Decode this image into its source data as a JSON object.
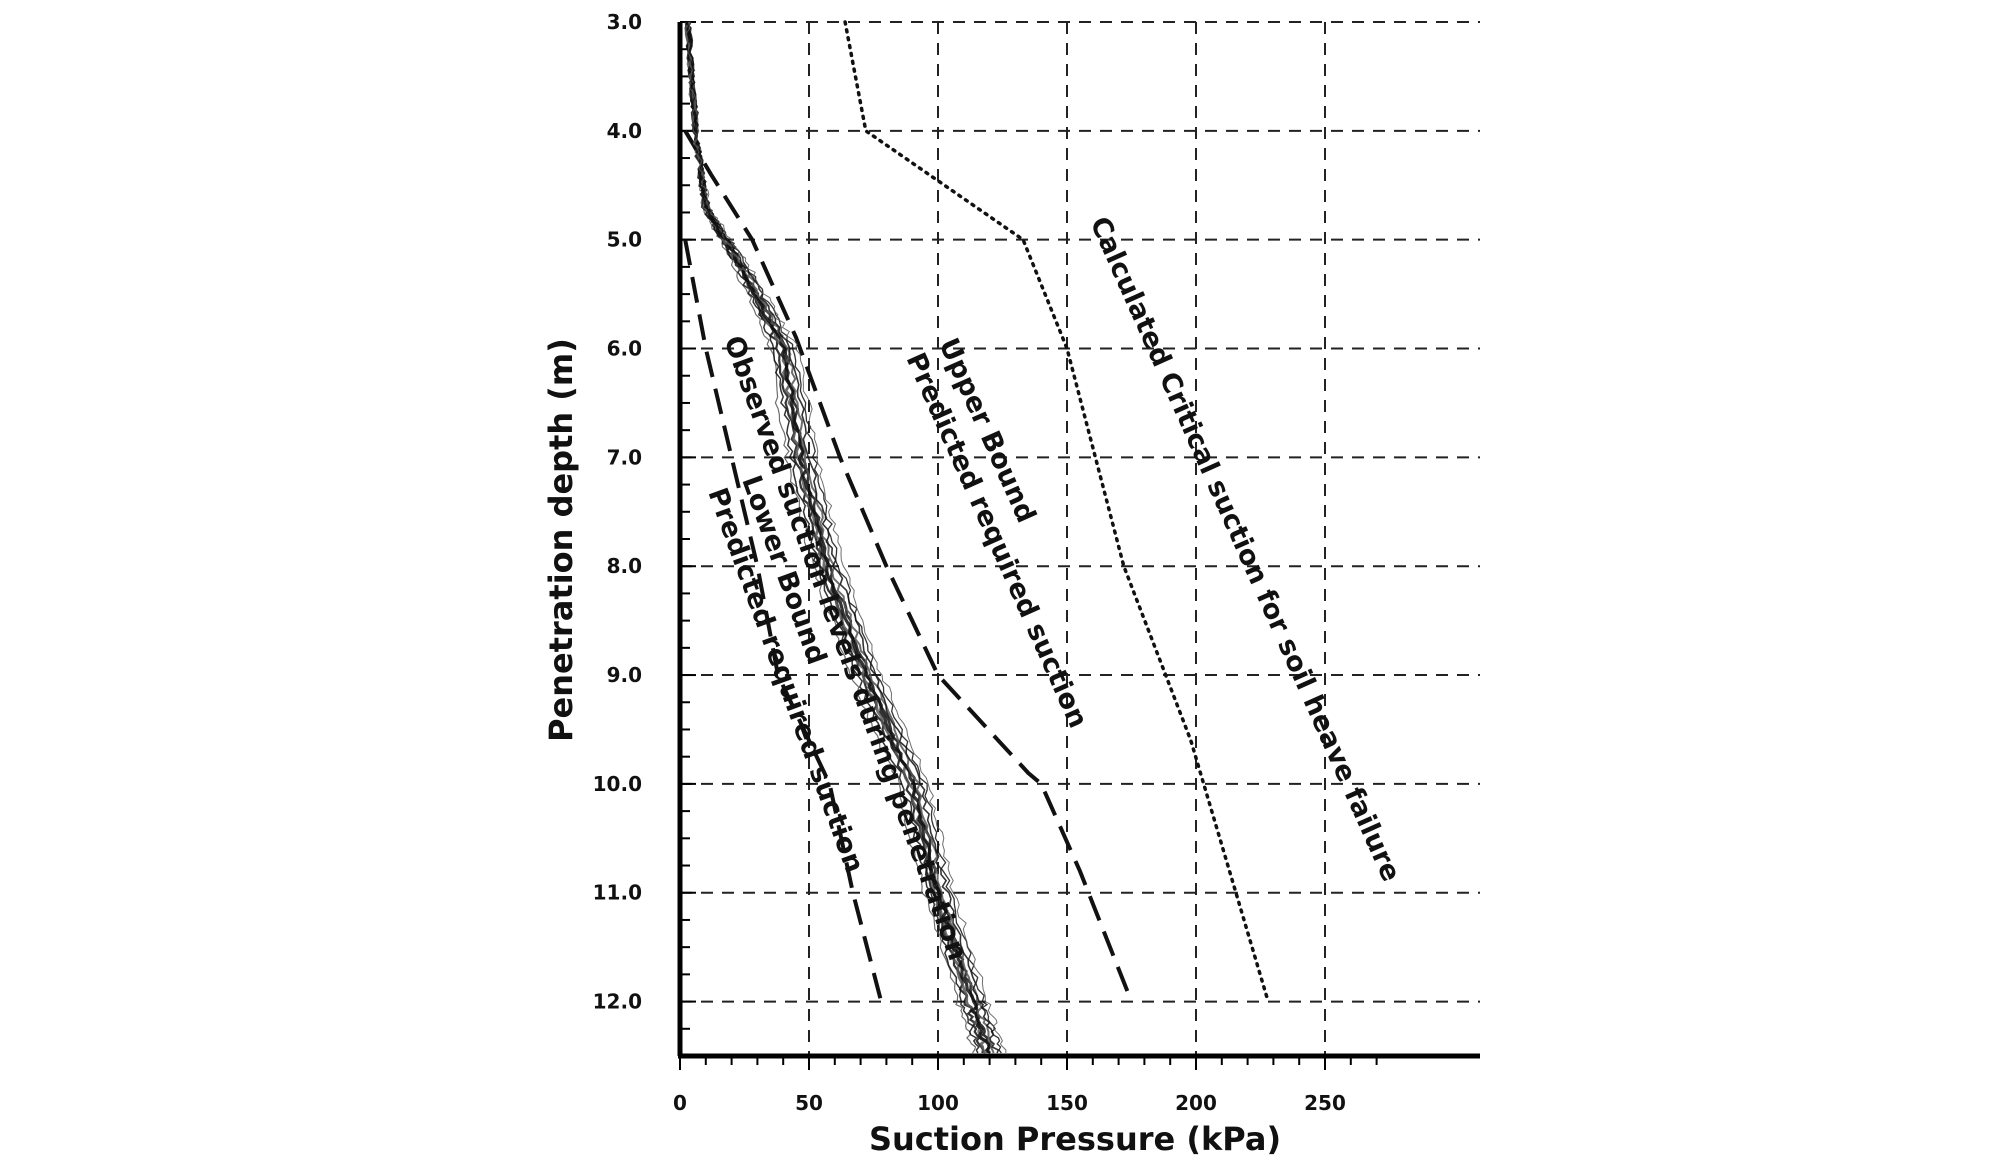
{
  "chart_data": {
    "type": "line",
    "title": "",
    "xlabel": "Suction Pressure (kPa)",
    "ylabel": "Penetration depth (m)",
    "xlim": [
      0,
      270
    ],
    "ylim": [
      3.0,
      12.5
    ],
    "y_inverted": true,
    "grid": true,
    "x_ticks": [
      0,
      50,
      100,
      150,
      200,
      250
    ],
    "x_tick_labels": [
      "0",
      "50",
      "100",
      "150",
      "200",
      "250"
    ],
    "y_ticks": [
      3,
      4,
      5,
      6,
      7,
      8,
      9,
      10,
      11,
      12
    ],
    "y_tick_labels": [
      "3.0",
      "4.0",
      "5.0",
      "6.0",
      "7.0",
      "8.0",
      "9.0",
      "10.0",
      "11.0",
      "12.0"
    ],
    "series": [
      {
        "style": "dotted",
        "points": [
          [
            64,
            3.0
          ],
          [
            72,
            4.0
          ],
          [
            133,
            5.0
          ],
          [
            150,
            6.0
          ],
          [
            172,
            8.0
          ],
          [
            198,
            9.6
          ],
          [
            228,
            12.0
          ]
        ]
      },
      {
        "style": "dashed",
        "points": [
          [
            2,
            4.0
          ],
          [
            12,
            4.4
          ],
          [
            28,
            5.0
          ],
          [
            45,
            5.9
          ],
          [
            62,
            7.0
          ],
          [
            80,
            8.0
          ],
          [
            100,
            9.0
          ],
          [
            135,
            9.9
          ],
          [
            140,
            10.0
          ],
          [
            155,
            10.8
          ],
          [
            175,
            12.0
          ]
        ]
      },
      {
        "style": "dashed",
        "points": [
          [
            2,
            5.0
          ],
          [
            10,
            6.0
          ],
          [
            20,
            7.0
          ],
          [
            30,
            8.0
          ],
          [
            38,
            9.0
          ],
          [
            48,
            9.5
          ],
          [
            58,
            10.0
          ],
          [
            67,
            11.0
          ],
          [
            78,
            12.0
          ]
        ]
      },
      {
        "style": "observed",
        "points": [
          [
            3,
            3.0
          ],
          [
            6,
            4.0
          ],
          [
            10,
            4.7
          ],
          [
            25,
            5.3
          ],
          [
            40,
            6.0
          ],
          [
            47,
            7.0
          ],
          [
            57,
            8.0
          ],
          [
            72,
            9.0
          ],
          [
            90,
            10.0
          ],
          [
            100,
            11.0
          ],
          [
            113,
            12.0
          ],
          [
            120,
            12.5
          ]
        ]
      }
    ],
    "annotations": [
      {
        "lines": [
          "Calculated Critical suction for soil heave failure"
        ]
      },
      {
        "lines": [
          "Predicted required suction",
          "Upper Bound"
        ]
      },
      {
        "lines": [
          "Observed suction levels during penetration"
        ]
      },
      {
        "lines": [
          "Predicted required suction",
          "Lower Bound"
        ]
      }
    ]
  }
}
